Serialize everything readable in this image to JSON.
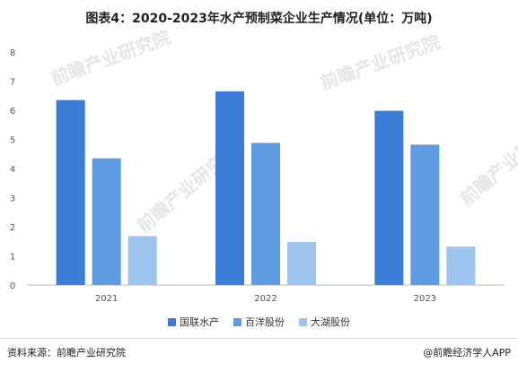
{
  "title": "图表4：2020-2023年水产预制菜企业生产情况(单位：万吨)",
  "watermark": "前瞻产业研究院",
  "chart_data": {
    "type": "bar",
    "categories": [
      "2021",
      "2022",
      "2023"
    ],
    "series": [
      {
        "name": "国联水产",
        "color": "#3b7dd8",
        "values": [
          6.35,
          6.65,
          5.98
        ]
      },
      {
        "name": "百洋股份",
        "color": "#5e9be3",
        "values": [
          4.35,
          4.88,
          4.82
        ]
      },
      {
        "name": "大湖股份",
        "color": "#9ec5f0",
        "values": [
          1.68,
          1.48,
          1.32
        ]
      }
    ],
    "ylim": [
      0,
      8
    ],
    "yticks": [
      0,
      1,
      2,
      3,
      4,
      5,
      6,
      7,
      8
    ],
    "legend_position": "bottom",
    "grid": false
  },
  "footer": {
    "source": "资料来源：前瞻产业研究院",
    "credit": "@前瞻经济学人APP"
  }
}
